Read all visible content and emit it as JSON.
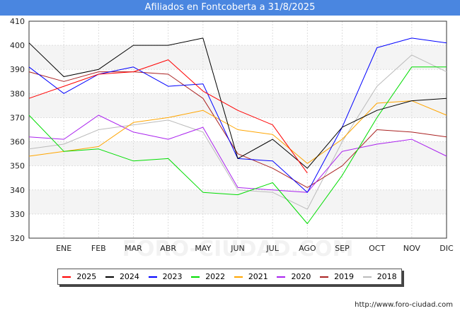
{
  "header": {
    "title": "Afiliados en Fontcoberta a 31/8/2025"
  },
  "footer": {
    "url": "http://www.foro-ciudad.com"
  },
  "watermark": "FORO-CIUDAD.COM",
  "chart_data": {
    "type": "line",
    "title": "Afiliados en Fontcoberta a 31/8/2025",
    "categories": [
      "",
      "ENE",
      "FEB",
      "MAR",
      "ABR",
      "MAY",
      "JUN",
      "JUL",
      "AGO",
      "SEP",
      "OCT",
      "NOV",
      "DIC"
    ],
    "ylim": [
      320,
      410
    ],
    "yticks": [
      320,
      330,
      340,
      350,
      360,
      370,
      380,
      390,
      400,
      410
    ],
    "grid": true,
    "legend_position": "bottom",
    "series": [
      {
        "name": "2025",
        "color": "#ff0000",
        "values": [
          378,
          383,
          388,
          389,
          394,
          381,
          373,
          367,
          347,
          null,
          null,
          null,
          null
        ]
      },
      {
        "name": "2024",
        "color": "#000000",
        "values": [
          401,
          387,
          390,
          400,
          400,
          403,
          353,
          361,
          349,
          366,
          373,
          377,
          378
        ]
      },
      {
        "name": "2023",
        "color": "#0000ff",
        "values": [
          391,
          380,
          388,
          391,
          383,
          384,
          353,
          352,
          339,
          366,
          399,
          403,
          401
        ]
      },
      {
        "name": "2022",
        "color": "#00dd00",
        "values": [
          371,
          356,
          357,
          352,
          353,
          339,
          338,
          343,
          326,
          346,
          370,
          391,
          391
        ]
      },
      {
        "name": "2021",
        "color": "#ffa500",
        "values": [
          354,
          356,
          358,
          368,
          370,
          373,
          365,
          363,
          351,
          361,
          376,
          377,
          371
        ]
      },
      {
        "name": "2020",
        "color": "#aa22ee",
        "values": [
          362,
          361,
          371,
          364,
          361,
          366,
          341,
          340,
          339,
          356,
          359,
          361,
          354
        ]
      },
      {
        "name": "2019",
        "color": "#aa2222",
        "values": [
          389,
          385,
          389,
          389,
          388,
          378,
          355,
          349,
          341,
          350,
          365,
          364,
          362
        ]
      },
      {
        "name": "2018",
        "color": "#bbbbbb",
        "values": [
          357,
          359,
          365,
          367,
          369,
          364,
          340,
          339,
          332,
          360,
          383,
          396,
          389
        ]
      }
    ]
  }
}
